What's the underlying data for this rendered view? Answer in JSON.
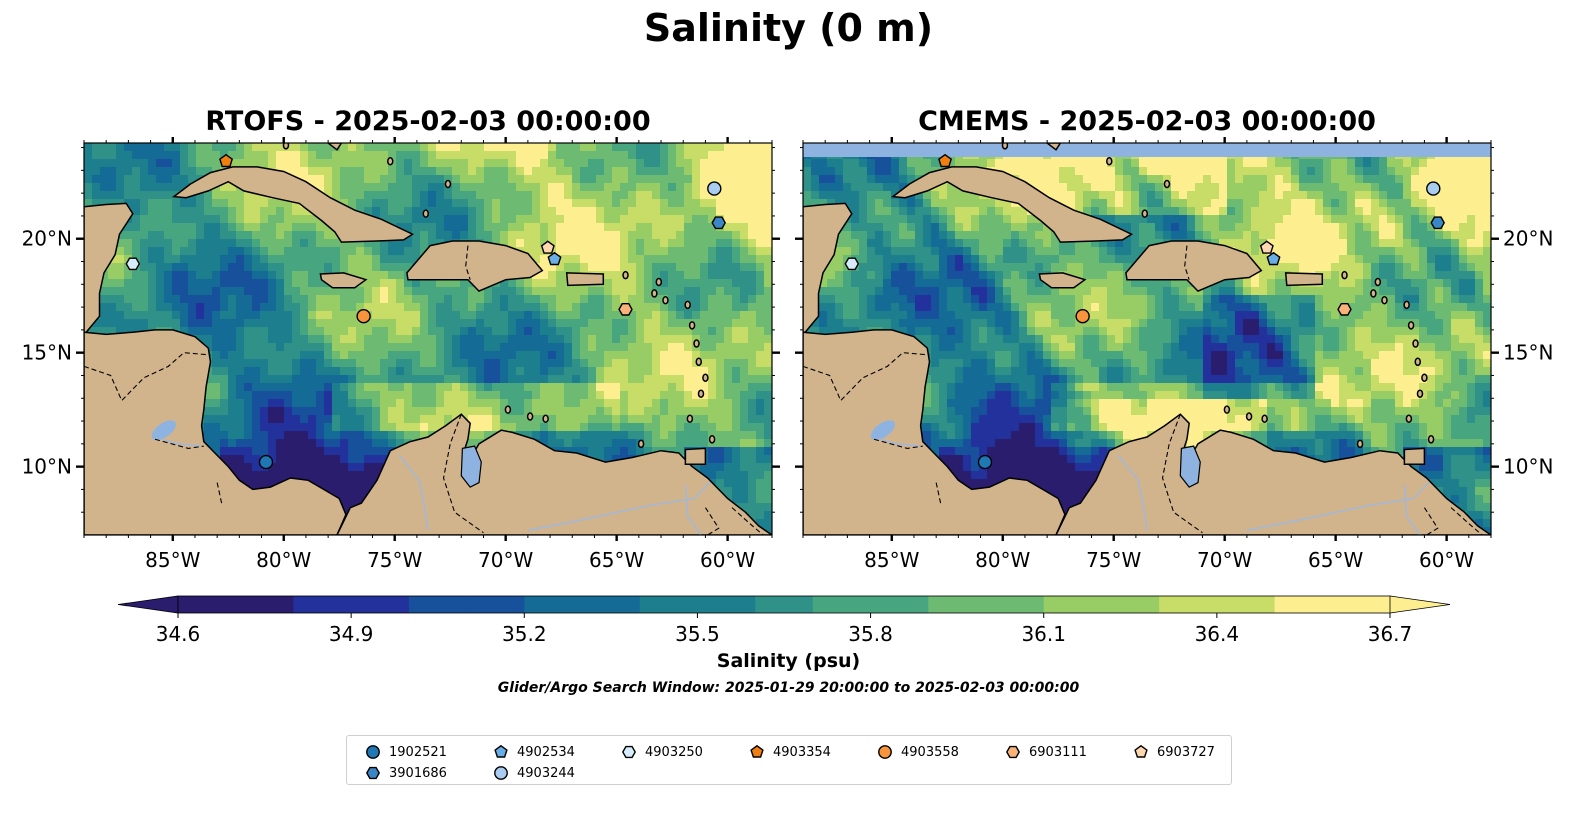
{
  "title": "Salinity (0 m)",
  "panels": [
    {
      "title": "RTOFS - 2025-02-03 00:00:00"
    },
    {
      "title": "CMEMS - 2025-02-03 00:00:00"
    }
  ],
  "map": {
    "lon_range": [
      -89,
      -58
    ],
    "lat_range": [
      7,
      24.2
    ],
    "x_ticks": [
      "85°W",
      "80°W",
      "75°W",
      "70°W",
      "65°W",
      "60°W"
    ],
    "y_ticks": [
      "20°N",
      "15°N",
      "10°N"
    ],
    "colors": {
      "land": "#d2b48c",
      "lake": "#8fb3e0",
      "river": "#a3b8d6",
      "low_salinity": "#2a1d6e",
      "high_salinity": "#fdee90"
    }
  },
  "colorbar": {
    "label": "Salinity (psu)",
    "min": 34.6,
    "max": 36.7,
    "ticks": [
      "34.6",
      "34.9",
      "35.2",
      "35.5",
      "35.8",
      "36.1",
      "36.4",
      "36.7"
    ],
    "colormap": [
      "#2a1d6e",
      "#22319b",
      "#17509b",
      "#146b95",
      "#1d7f8e",
      "#2f9187",
      "#47a57f",
      "#6dba72",
      "#98cc65",
      "#c8dc68",
      "#fdee90"
    ],
    "extend": "both"
  },
  "note": "Glider/Argo Search Window: 2025-01-29 20:00:00 to 2025-02-03 00:00:00",
  "floats": [
    {
      "id": "1902521",
      "marker": "circle",
      "color": "#1f77b4",
      "lon": -80.8,
      "lat": 10.2
    },
    {
      "id": "3901686",
      "marker": "hexagon",
      "color": "#3a86c6",
      "lon": -60.4,
      "lat": 20.7
    },
    {
      "id": "4902534",
      "marker": "pentagon",
      "color": "#6aaee6",
      "lon": -67.8,
      "lat": 19.1
    },
    {
      "id": "4903244",
      "marker": "circle",
      "color": "#a8cdf0",
      "lon": -60.6,
      "lat": 22.2
    },
    {
      "id": "4903250",
      "marker": "hexagon",
      "color": "#d7ecfb",
      "lon": -86.8,
      "lat": 18.9
    },
    {
      "id": "4903354",
      "marker": "pentagon",
      "color": "#f07f12",
      "lon": -82.6,
      "lat": 23.4
    },
    {
      "id": "4903558",
      "marker": "circle",
      "color": "#f8953c",
      "lon": -76.4,
      "lat": 16.6
    },
    {
      "id": "6903111",
      "marker": "hexagon",
      "color": "#f8b27a",
      "lon": -64.6,
      "lat": 16.9
    },
    {
      "id": "6903727",
      "marker": "pentagon",
      "color": "#fcd7b0",
      "lon": -68.1,
      "lat": 19.6
    }
  ]
}
